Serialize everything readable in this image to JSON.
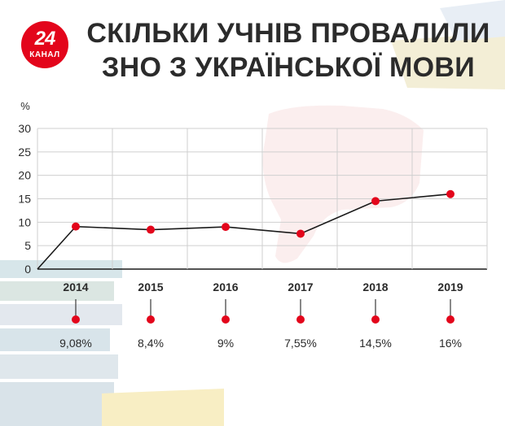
{
  "logo": {
    "number": "24",
    "word": "КАНАЛ"
  },
  "title_lines": [
    "СКІЛЬКИ УЧНІВ ПРОВАЛИЛИ",
    "ЗНО З УКРАЇНСЬКОЇ МОВИ"
  ],
  "colors": {
    "accent": "#e3051b",
    "line": "#1a1a1a",
    "grid": "#cfcfcf",
    "text": "#2b2b2b"
  },
  "chart_data": {
    "type": "line",
    "ylabel": "%",
    "ylim": [
      0,
      30
    ],
    "yticks": [
      0,
      5,
      10,
      15,
      20,
      25,
      30
    ],
    "grid": true,
    "categories": [
      "2014",
      "2015",
      "2016",
      "2017",
      "2018",
      "2019"
    ],
    "series": [
      {
        "values": [
          9.08,
          8.4,
          9,
          7.55,
          14.5,
          16
        ]
      }
    ],
    "data_labels": [
      "9,08%",
      "8,4%",
      "9%",
      "7,55%",
      "14,5%",
      "16%"
    ]
  }
}
